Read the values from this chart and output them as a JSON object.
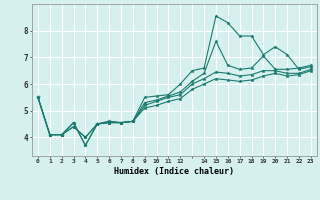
{
  "xlabel": "Humidex (Indice chaleur)",
  "ylabel": "",
  "background_color": "#d6f0f0",
  "grid_color": "#ffffff",
  "line_color": "#1a7a6e",
  "xlim": [
    -0.5,
    23.5
  ],
  "ylim": [
    3.3,
    9.0
  ],
  "xtick_labels": [
    "0",
    "1",
    "2",
    "3",
    "4",
    "5",
    "6",
    "7",
    "8",
    "9",
    "10",
    "11",
    "12",
    "",
    "14",
    "15",
    "16",
    "17",
    "18",
    "19",
    "20",
    "21",
    "22",
    "23"
  ],
  "ytick_values": [
    4,
    5,
    6,
    7,
    8
  ],
  "series": [
    [
      5.5,
      4.1,
      4.1,
      4.55,
      3.7,
      4.5,
      4.55,
      4.55,
      4.6,
      5.5,
      5.55,
      5.6,
      6.0,
      6.5,
      6.6,
      8.55,
      8.3,
      7.8,
      7.8,
      7.1,
      7.4,
      7.1,
      6.55,
      6.65
    ],
    [
      5.5,
      4.1,
      4.1,
      4.55,
      3.7,
      4.5,
      4.55,
      4.55,
      4.6,
      5.3,
      5.4,
      5.55,
      5.7,
      6.1,
      6.4,
      7.6,
      6.7,
      6.55,
      6.6,
      7.05,
      6.55,
      6.55,
      6.6,
      6.7
    ],
    [
      5.5,
      4.1,
      4.1,
      4.4,
      4.0,
      4.5,
      4.6,
      4.55,
      4.6,
      5.2,
      5.35,
      5.5,
      5.6,
      6.0,
      6.2,
      6.45,
      6.4,
      6.3,
      6.35,
      6.5,
      6.5,
      6.4,
      6.4,
      6.55
    ],
    [
      5.5,
      4.1,
      4.1,
      4.4,
      4.0,
      4.5,
      4.6,
      4.55,
      4.6,
      5.1,
      5.2,
      5.35,
      5.45,
      5.8,
      6.0,
      6.2,
      6.15,
      6.1,
      6.15,
      6.3,
      6.4,
      6.3,
      6.35,
      6.5
    ]
  ]
}
